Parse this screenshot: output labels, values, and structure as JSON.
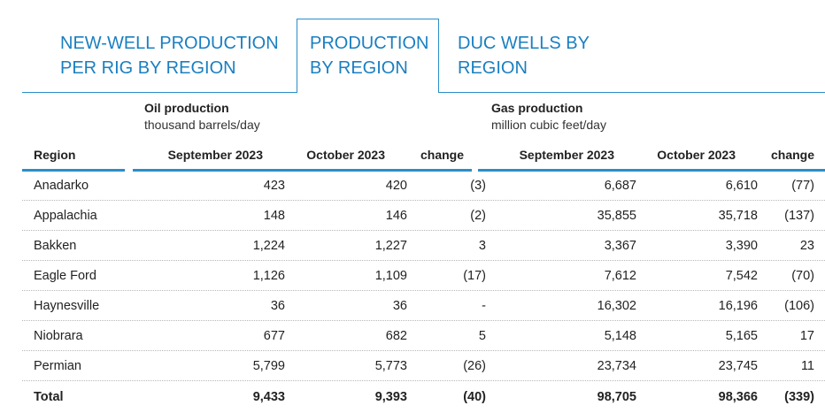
{
  "tabs": [
    {
      "line1": "NEW-WELL PRODUCTION",
      "line2": "PER RIG BY REGION",
      "active": false
    },
    {
      "line1": "PRODUCTION",
      "line2": "BY REGION",
      "active": true
    },
    {
      "line1": "DUC WELLS BY",
      "line2": "REGION",
      "active": false
    }
  ],
  "groups": {
    "oil": {
      "title": "Oil production",
      "unit": "thousand barrels/day"
    },
    "gas": {
      "title": "Gas production",
      "unit": "million cubic feet/day"
    }
  },
  "columns": {
    "region": "Region",
    "oil_sep": "September 2023",
    "oil_oct": "October 2023",
    "oil_change": "change",
    "gas_sep": "September 2023",
    "gas_oct": "October 2023",
    "gas_change": "change"
  },
  "rows": [
    {
      "region": "Anadarko",
      "oil_sep": "423",
      "oil_oct": "420",
      "oil_change": "(3)",
      "gas_sep": "6,687",
      "gas_oct": "6,610",
      "gas_change": "(77)"
    },
    {
      "region": "Appalachia",
      "oil_sep": "148",
      "oil_oct": "146",
      "oil_change": "(2)",
      "gas_sep": "35,855",
      "gas_oct": "35,718",
      "gas_change": "(137)"
    },
    {
      "region": "Bakken",
      "oil_sep": "1,224",
      "oil_oct": "1,227",
      "oil_change": "3",
      "gas_sep": "3,367",
      "gas_oct": "3,390",
      "gas_change": "23"
    },
    {
      "region": "Eagle Ford",
      "oil_sep": "1,126",
      "oil_oct": "1,109",
      "oil_change": "(17)",
      "gas_sep": "7,612",
      "gas_oct": "7,542",
      "gas_change": "(70)"
    },
    {
      "region": "Haynesville",
      "oil_sep": "36",
      "oil_oct": "36",
      "oil_change": "-",
      "gas_sep": "16,302",
      "gas_oct": "16,196",
      "gas_change": "(106)"
    },
    {
      "region": "Niobrara",
      "oil_sep": "677",
      "oil_oct": "682",
      "oil_change": "5",
      "gas_sep": "5,148",
      "gas_oct": "5,165",
      "gas_change": "17"
    },
    {
      "region": "Permian",
      "oil_sep": "5,799",
      "oil_oct": "5,773",
      "oil_change": "(26)",
      "gas_sep": "23,734",
      "gas_oct": "23,745",
      "gas_change": "11"
    }
  ],
  "total": {
    "region": "Total",
    "oil_sep": "9,433",
    "oil_oct": "9,393",
    "oil_change": "(40)",
    "gas_sep": "98,705",
    "gas_oct": "98,366",
    "gas_change": "(339)"
  },
  "colors": {
    "accent": "#2a8ec8",
    "tab_text": "#1a7fc1"
  }
}
